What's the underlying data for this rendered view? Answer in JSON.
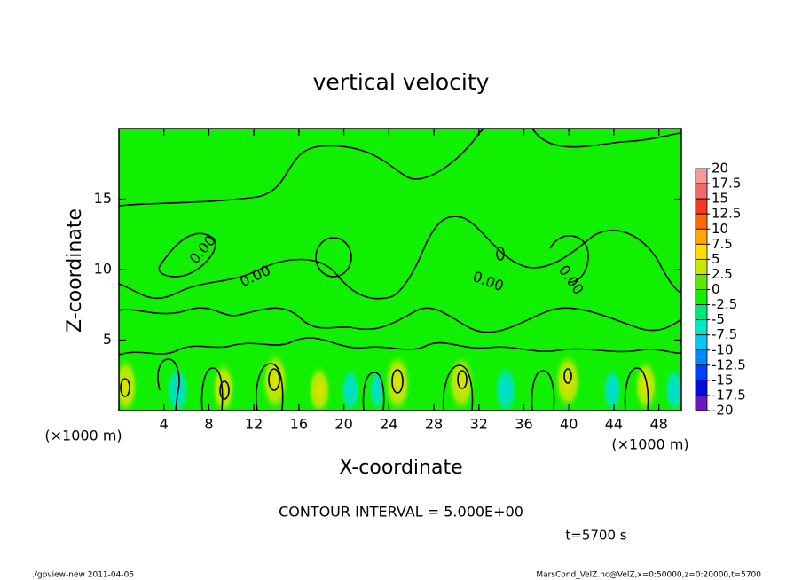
{
  "chart_data": {
    "type": "contour",
    "title": "vertical velocity",
    "x_label": "X-coordinate",
    "y_label": "Z-coordinate",
    "x_unit": "(×1000 m)",
    "xlim": [
      0,
      50
    ],
    "xticks": [
      4,
      8,
      12,
      16,
      20,
      24,
      28,
      32,
      36,
      40,
      44,
      48
    ],
    "ylim": [
      0,
      20
    ],
    "yticks": [
      5,
      10,
      15
    ],
    "contour_label": "0.00",
    "colorbar": {
      "clim": [
        -20,
        20
      ],
      "ticks": [
        20,
        17.5,
        15,
        12.5,
        10,
        7.5,
        5,
        2.5,
        0,
        -2.5,
        -5,
        -7.5,
        -10,
        -12.5,
        -15,
        -17.5,
        -20
      ],
      "colors": [
        "#f49a9a",
        "#f26a6a",
        "#f23a22",
        "#ff6a00",
        "#ffa800",
        "#ffdc00",
        "#c8e600",
        "#5ee800",
        "#10f000",
        "#00e878",
        "#00e8c0",
        "#00c8f0",
        "#0088ff",
        "#0040ff",
        "#0010d8",
        "#6a1ab8"
      ]
    },
    "contour_interval": "CONTOUR INTERVAL = 5.000E+00",
    "time_label": "t=5700 s",
    "footer_left": "./gpview-new   2011-04-05",
    "footer_right": "MarsCond_VelZ.nc@VelZ,x=0:50000,z=0:20000,t=5700"
  }
}
